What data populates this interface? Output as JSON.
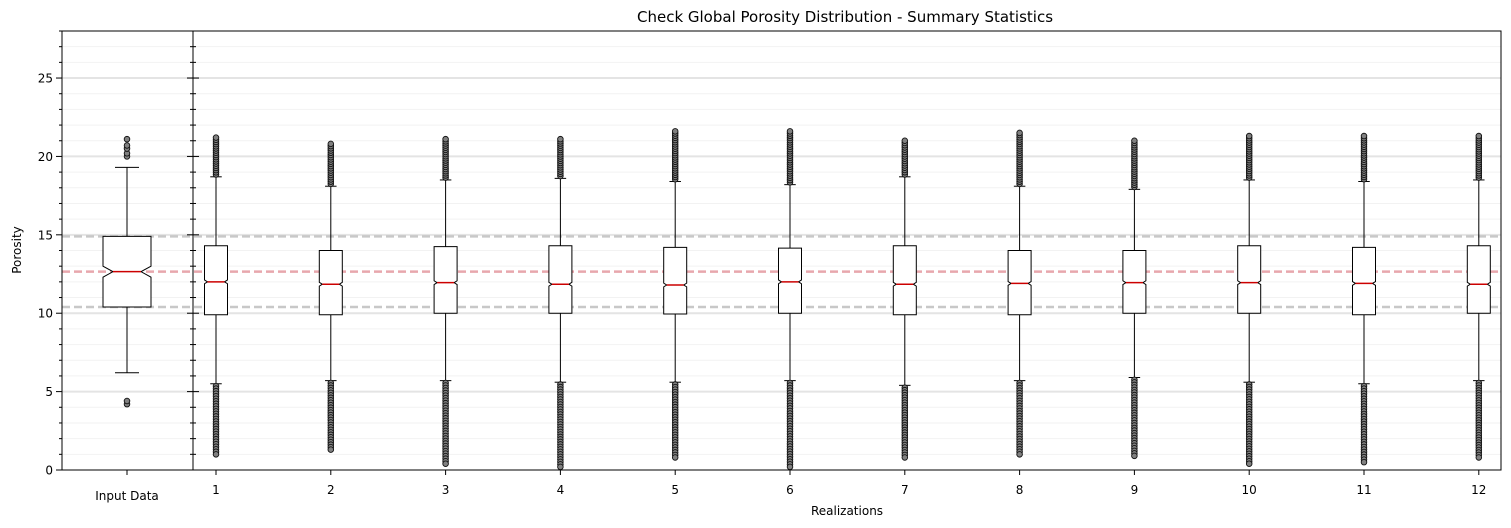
{
  "chart_data": {
    "type": "boxplot",
    "title": "Check Global Porosity Distribution - Summary Statistics",
    "ylabel": "Porosity",
    "xlabel": "Realizations",
    "ylim": [
      0,
      28
    ],
    "yticks": [
      0,
      5,
      10,
      15,
      20,
      25
    ],
    "input_panel": {
      "label": "Input Data",
      "q1": 10.4,
      "median": 12.65,
      "q3": 14.9,
      "whislo": 6.2,
      "whishi": 19.3,
      "notch_lo": 12.3,
      "notch_hi": 13.0,
      "fliers": [
        4.2,
        4.4,
        20.0,
        20.2,
        20.5,
        20.7,
        21.1
      ]
    },
    "reference_lines": {
      "p25": 10.4,
      "p50": 12.65,
      "p75": 14.9
    },
    "realizations": [
      {
        "label": "1",
        "q1": 9.9,
        "median": 12.0,
        "q3": 14.3,
        "whislo": 5.5,
        "whishi": 18.7,
        "flier_lo": 1.0,
        "flier_hi": 21.2
      },
      {
        "label": "2",
        "q1": 9.9,
        "median": 11.85,
        "q3": 14.0,
        "whislo": 5.7,
        "whishi": 18.1,
        "flier_lo": 1.3,
        "flier_hi": 20.8
      },
      {
        "label": "3",
        "q1": 10.0,
        "median": 11.95,
        "q3": 14.25,
        "whislo": 5.7,
        "whishi": 18.5,
        "flier_lo": 0.4,
        "flier_hi": 21.1
      },
      {
        "label": "4",
        "q1": 10.0,
        "median": 11.85,
        "q3": 14.3,
        "whislo": 5.6,
        "whishi": 18.6,
        "flier_lo": 0.2,
        "flier_hi": 21.1
      },
      {
        "label": "5",
        "q1": 9.95,
        "median": 11.8,
        "q3": 14.2,
        "whislo": 5.6,
        "whishi": 18.4,
        "flier_lo": 0.8,
        "flier_hi": 21.6
      },
      {
        "label": "6",
        "q1": 10.0,
        "median": 12.0,
        "q3": 14.15,
        "whislo": 5.7,
        "whishi": 18.2,
        "flier_lo": 0.2,
        "flier_hi": 21.6
      },
      {
        "label": "7",
        "q1": 9.9,
        "median": 11.85,
        "q3": 14.3,
        "whislo": 5.4,
        "whishi": 18.7,
        "flier_lo": 0.8,
        "flier_hi": 21.0
      },
      {
        "label": "8",
        "q1": 9.9,
        "median": 11.9,
        "q3": 14.0,
        "whislo": 5.7,
        "whishi": 18.1,
        "flier_lo": 1.0,
        "flier_hi": 21.5
      },
      {
        "label": "9",
        "q1": 10.0,
        "median": 11.95,
        "q3": 14.0,
        "whislo": 5.9,
        "whishi": 17.9,
        "flier_lo": 0.9,
        "flier_hi": 21.0
      },
      {
        "label": "10",
        "q1": 10.0,
        "median": 11.95,
        "q3": 14.3,
        "whislo": 5.6,
        "whishi": 18.5,
        "flier_lo": 0.4,
        "flier_hi": 21.3
      },
      {
        "label": "11",
        "q1": 9.9,
        "median": 11.9,
        "q3": 14.2,
        "whislo": 5.5,
        "whishi": 18.4,
        "flier_lo": 0.5,
        "flier_hi": 21.3
      },
      {
        "label": "12",
        "q1": 10.0,
        "median": 11.85,
        "q3": 14.3,
        "whislo": 5.7,
        "whishi": 18.5,
        "flier_lo": 0.8,
        "flier_hi": 21.3
      }
    ],
    "colors": {
      "median": "#cc0000",
      "ref_median": "#e8a7ad",
      "ref_quartile": "#c8c8c8",
      "grid_major": "#e4e4e4",
      "grid_minor": "#f2f2f2",
      "flier_fill": "#808080"
    }
  }
}
